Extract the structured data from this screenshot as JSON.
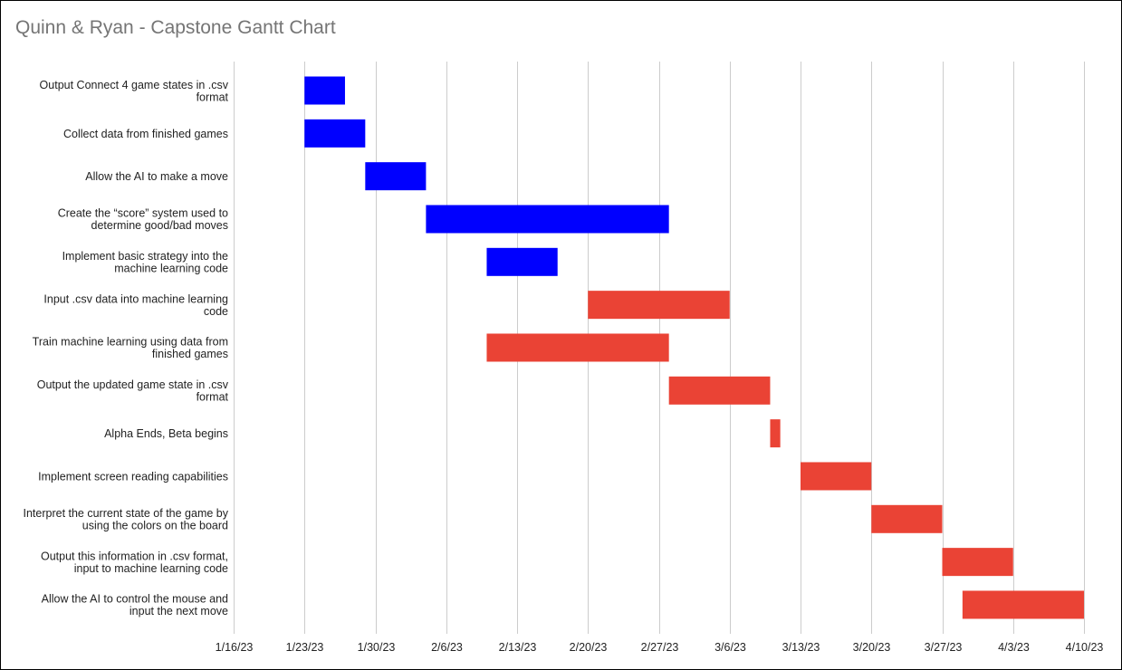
{
  "chart_data": {
    "type": "bar",
    "subtype": "gantt",
    "title": "Quinn & Ryan - Capstone Gantt Chart",
    "xlabel": "",
    "ylabel": "",
    "grid": "vertical",
    "legend": "none",
    "x_axis": {
      "type": "date",
      "range": [
        "2023-01-16",
        "2023-04-10"
      ],
      "ticks": [
        {
          "date": "2023-01-16",
          "label": "1/16/23"
        },
        {
          "date": "2023-01-23",
          "label": "1/23/23"
        },
        {
          "date": "2023-01-30",
          "label": "1/30/23"
        },
        {
          "date": "2023-02-06",
          "label": "2/6/23"
        },
        {
          "date": "2023-02-13",
          "label": "2/13/23"
        },
        {
          "date": "2023-02-20",
          "label": "2/20/23"
        },
        {
          "date": "2023-02-27",
          "label": "2/27/23"
        },
        {
          "date": "2023-03-06",
          "label": "3/6/23"
        },
        {
          "date": "2023-03-13",
          "label": "3/13/23"
        },
        {
          "date": "2023-03-20",
          "label": "3/20/23"
        },
        {
          "date": "2023-03-27",
          "label": "3/27/23"
        },
        {
          "date": "2023-04-03",
          "label": "4/3/23"
        },
        {
          "date": "2023-04-10",
          "label": "4/10/23"
        }
      ]
    },
    "colors": {
      "blue": "#0000ff",
      "red": "#ea4335"
    },
    "tasks": [
      {
        "lines": [
          "Output Connect 4 game states in .csv",
          "format"
        ],
        "start": "2023-01-23",
        "end": "2023-01-27",
        "color": "#0000ff"
      },
      {
        "lines": [
          "Collect data from finished games"
        ],
        "start": "2023-01-23",
        "end": "2023-01-29",
        "color": "#0000ff"
      },
      {
        "lines": [
          "Allow the AI to make a move"
        ],
        "start": "2023-01-29",
        "end": "2023-02-04",
        "color": "#0000ff"
      },
      {
        "lines": [
          "Create the “score” system used to",
          "determine good/bad moves"
        ],
        "start": "2023-02-04",
        "end": "2023-02-28",
        "color": "#0000ff"
      },
      {
        "lines": [
          "Implement basic strategy into the",
          "machine learning code"
        ],
        "start": "2023-02-10",
        "end": "2023-02-17",
        "color": "#0000ff"
      },
      {
        "lines": [
          "Input .csv data into machine learning",
          "code"
        ],
        "start": "2023-02-20",
        "end": "2023-03-06",
        "color": "#ea4335"
      },
      {
        "lines": [
          "Train machine learning using data from",
          "finished games"
        ],
        "start": "2023-02-10",
        "end": "2023-02-28",
        "color": "#ea4335"
      },
      {
        "lines": [
          "Output the updated game state in .csv",
          "format"
        ],
        "start": "2023-02-28",
        "end": "2023-03-10",
        "color": "#ea4335"
      },
      {
        "lines": [
          "Alpha Ends, Beta begins"
        ],
        "start": "2023-03-10",
        "end": "2023-03-11",
        "color": "#ea4335"
      },
      {
        "lines": [
          "Implement screen reading capabilities"
        ],
        "start": "2023-03-13",
        "end": "2023-03-20",
        "color": "#ea4335"
      },
      {
        "lines": [
          "Interpret the current state of the game by",
          "using the colors on the board"
        ],
        "start": "2023-03-20",
        "end": "2023-03-27",
        "color": "#ea4335"
      },
      {
        "lines": [
          "Output this information in .csv format,",
          "input to machine learning code"
        ],
        "start": "2023-03-27",
        "end": "2023-04-03",
        "color": "#ea4335"
      },
      {
        "lines": [
          "Allow the AI to control the mouse and",
          "input the next move"
        ],
        "start": "2023-03-29",
        "end": "2023-04-10",
        "color": "#ea4335"
      }
    ]
  }
}
